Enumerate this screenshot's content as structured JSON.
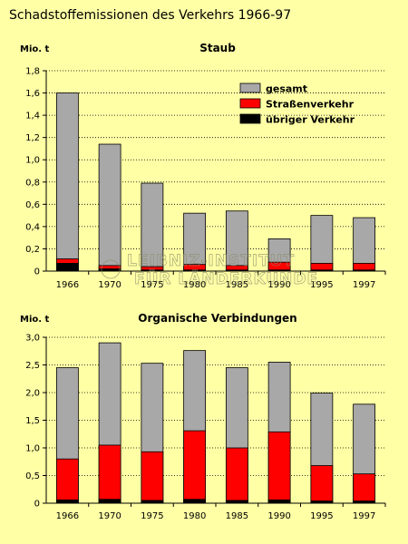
{
  "title": "Schadstoffemissionen des Verkehrs 1966-97",
  "watermark": [
    "LEIBNIZ-INSTITUT",
    "FÜR LÄNDERKUNDE"
  ],
  "colors": {
    "gesamt": "#a8a8a8",
    "strasse": "#ff0000",
    "uebrig": "#000000",
    "background": "#ffffa6"
  },
  "chart_data": [
    {
      "type": "bar",
      "title": "Staub",
      "ylabel": "Mio. t",
      "categories": [
        "1966",
        "1970",
        "1975",
        "1980",
        "1985",
        "1990",
        "1995",
        "1997"
      ],
      "ylim": [
        0,
        1.8
      ],
      "yticks": [
        "0",
        "0,2",
        "0,4",
        "0,6",
        "0,8",
        "1,0",
        "1,2",
        "1,4",
        "1,6",
        "1,8"
      ],
      "grid": true,
      "legend_position": "top-right",
      "legend": [
        "gesamt",
        "Straßenverkehr",
        "übriger Verkehr"
      ],
      "series": [
        {
          "name": "gesamt",
          "values": [
            1.6,
            1.14,
            0.79,
            0.52,
            0.54,
            0.29,
            0.5,
            0.48
          ]
        },
        {
          "name": "Straßenverkehr",
          "values": [
            0.11,
            0.05,
            0.04,
            0.06,
            0.05,
            0.08,
            0.07,
            0.07
          ]
        },
        {
          "name": "übriger Verkehr",
          "values": [
            0.07,
            0.02,
            0.01,
            0.01,
            0.01,
            0.01,
            0.01,
            0.01
          ]
        }
      ]
    },
    {
      "type": "bar",
      "title": "Organische Verbindungen",
      "ylabel": "Mio. t",
      "categories": [
        "1966",
        "1970",
        "1975",
        "1980",
        "1985",
        "1990",
        "1995",
        "1997"
      ],
      "ylim": [
        0,
        3.0
      ],
      "yticks": [
        "0",
        "0,5",
        "1,0",
        "1,5",
        "2,0",
        "2,5",
        "3,0"
      ],
      "grid": true,
      "series": [
        {
          "name": "gesamt",
          "values": [
            2.45,
            2.9,
            2.53,
            2.76,
            2.45,
            2.55,
            1.99,
            1.79
          ]
        },
        {
          "name": "Straßenverkehr",
          "values": [
            0.8,
            1.05,
            0.93,
            1.31,
            1.0,
            1.29,
            0.68,
            0.53
          ]
        },
        {
          "name": "übriger Verkehr",
          "values": [
            0.06,
            0.07,
            0.05,
            0.07,
            0.05,
            0.06,
            0.04,
            0.04
          ]
        }
      ]
    }
  ]
}
